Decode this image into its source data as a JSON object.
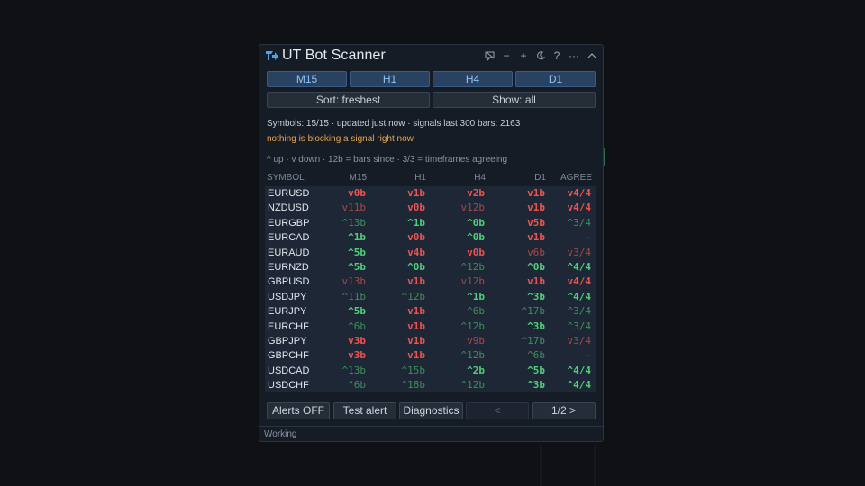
{
  "window": {
    "title": "UT Bot Scanner",
    "icons": [
      "chat-icon",
      "minus-icon",
      "plus-icon",
      "moon-icon",
      "help-icon",
      "more-icon",
      "collapse-icon"
    ]
  },
  "timeframes": [
    "M15",
    "H1",
    "H4",
    "D1"
  ],
  "controls": {
    "sort_label": "Sort: freshest",
    "show_label": "Show: all"
  },
  "status": {
    "line": "Symbols: 15/15 · updated just now · signals last 300 bars: 2163",
    "warning": "nothing is blocking a signal right now",
    "legend": "^ up · v down · 12b = bars since · 3/3 = timeframes agreeing"
  },
  "table": {
    "headers": [
      "SYMBOL",
      "M15",
      "H1",
      "H4",
      "D1",
      "AGREE"
    ],
    "rows": [
      {
        "symbol": "EURUSD",
        "cells": [
          "v0b",
          "v1b",
          "v2b",
          "v1b",
          "v4/4"
        ],
        "tones": [
          "rs",
          "rs",
          "rs",
          "rs",
          "rs"
        ]
      },
      {
        "symbol": "NZDUSD",
        "cells": [
          "v11b",
          "v0b",
          "v12b",
          "v1b",
          "v4/4"
        ],
        "tones": [
          "rd",
          "rs",
          "rd",
          "rs",
          "rs"
        ]
      },
      {
        "symbol": "EURGBP",
        "cells": [
          "^13b",
          "^1b",
          "^0b",
          "v5b",
          "^3/4"
        ],
        "tones": [
          "gd",
          "gs",
          "gs",
          "rs",
          "gd"
        ]
      },
      {
        "symbol": "EURCAD",
        "cells": [
          "^1b",
          "v0b",
          "^0b",
          "v1b",
          "-"
        ],
        "tones": [
          "gs",
          "rs",
          "gs",
          "rs",
          "rd"
        ]
      },
      {
        "symbol": "EURAUD",
        "cells": [
          "^5b",
          "v4b",
          "v0b",
          "v6b",
          "v3/4"
        ],
        "tones": [
          "gs",
          "rs",
          "rs",
          "rd",
          "rd"
        ]
      },
      {
        "symbol": "EURNZD",
        "cells": [
          "^5b",
          "^0b",
          "^12b",
          "^0b",
          "^4/4"
        ],
        "tones": [
          "gs",
          "gs",
          "gd",
          "gs",
          "gs"
        ]
      },
      {
        "symbol": "GBPUSD",
        "cells": [
          "v13b",
          "v1b",
          "v12b",
          "v1b",
          "v4/4"
        ],
        "tones": [
          "rd",
          "rs",
          "rd",
          "rs",
          "rs"
        ]
      },
      {
        "symbol": "USDJPY",
        "cells": [
          "^11b",
          "^12b",
          "^1b",
          "^3b",
          "^4/4"
        ],
        "tones": [
          "gd",
          "gd",
          "gs",
          "gs",
          "gs"
        ]
      },
      {
        "symbol": "EURJPY",
        "cells": [
          "^5b",
          "v1b",
          "^6b",
          "^17b",
          "^3/4"
        ],
        "tones": [
          "gs",
          "rs",
          "gd",
          "gd",
          "gd"
        ]
      },
      {
        "symbol": "EURCHF",
        "cells": [
          "^6b",
          "v1b",
          "^12b",
          "^3b",
          "^3/4"
        ],
        "tones": [
          "gd",
          "rs",
          "gd",
          "gs",
          "gd"
        ]
      },
      {
        "symbol": "GBPJPY",
        "cells": [
          "v3b",
          "v1b",
          "v9b",
          "^17b",
          "v3/4"
        ],
        "tones": [
          "rs",
          "rs",
          "rd",
          "gd",
          "rd"
        ]
      },
      {
        "symbol": "GBPCHF",
        "cells": [
          "v3b",
          "v1b",
          "^12b",
          "^6b",
          "-"
        ],
        "tones": [
          "rs",
          "rs",
          "gd",
          "gd",
          "rd"
        ]
      },
      {
        "symbol": "USDCAD",
        "cells": [
          "^13b",
          "^15b",
          "^2b",
          "^5b",
          "^4/4"
        ],
        "tones": [
          "gd",
          "gd",
          "gs",
          "gs",
          "gs"
        ]
      },
      {
        "symbol": "USDCHF",
        "cells": [
          "^6b",
          "^18b",
          "^12b",
          "^3b",
          "^4/4"
        ],
        "tones": [
          "gd",
          "gd",
          "gd",
          "gs",
          "gs"
        ]
      }
    ]
  },
  "actions": {
    "alerts": "Alerts OFF",
    "test": "Test alert",
    "diagnostics": "Diagnostics",
    "prev": "<",
    "page": "1/2 >"
  },
  "statusbar": {
    "text": "Working"
  },
  "colors": {
    "up_strong": "#4fd07a",
    "up_dim": "#3d8f5c",
    "down_strong": "#ef5350",
    "down_dim": "#a9484a",
    "accent": "#8fc2f4",
    "warning": "#e6a84e"
  }
}
